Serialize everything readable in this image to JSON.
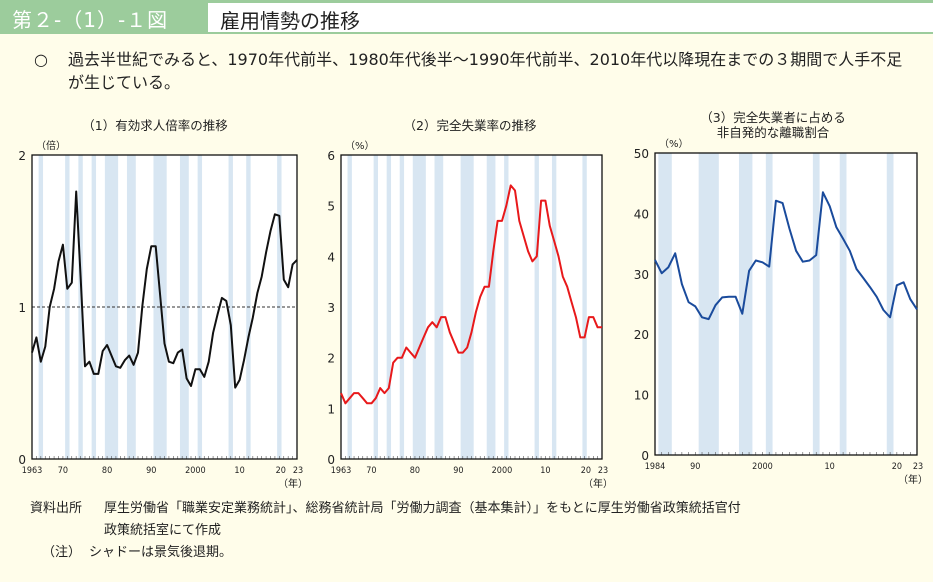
{
  "header": {
    "figure_number": "第２-（1）-１図",
    "title": "雇用情勢の推移"
  },
  "lead": {
    "bullet": "○",
    "text": "過去半世紀でみると、1970年代前半、1980年代後半～1990年代前半、2010年代以降現在までの３期間で人手不足が生じている。"
  },
  "source": {
    "label": "資料出所",
    "text_line1": "厚生労働省「職業安定業務統計」、総務省統計局「労働力調査（基本集計）」をもとに厚生労働省政策統括官付",
    "text_line2": "政策統括室にて作成",
    "note_label": "（注）",
    "note_text": "シャドーは景気後退期。"
  },
  "colors": {
    "header_bg": "#9ccc9c",
    "shade": "#d8e6f2",
    "series1": "#111111",
    "series2": "#e8191b",
    "series3": "#1a4b9c"
  },
  "chart_data": [
    {
      "type": "line",
      "title": "（1）有効求人倍率の推移",
      "ylabel": "（倍）",
      "xlabel": "（年）",
      "ylim": [
        0,
        2
      ],
      "yticks": [
        "0",
        "1",
        "2"
      ],
      "xlim": [
        1963,
        2023
      ],
      "xtick_labels": [
        {
          "x": 1963,
          "label": "1963"
        },
        {
          "x": 1970,
          "label": "70"
        },
        {
          "x": 1980,
          "label": "80"
        },
        {
          "x": 1990,
          "label": "90"
        },
        {
          "x": 2000,
          "label": "2000"
        },
        {
          "x": 2010,
          "label": "10"
        },
        {
          "x": 2020,
          "label": "20"
        },
        {
          "x": 2023,
          "label": "23"
        }
      ],
      "reference_line": 1,
      "shaded_periods": [
        [
          1964.5,
          1965.5
        ],
        [
          1970.5,
          1971.5
        ],
        [
          1973.5,
          1974.5
        ],
        [
          1976.5,
          1977.5
        ],
        [
          1979.5,
          1982.5
        ],
        [
          1984.5,
          1986.5
        ],
        [
          1990.5,
          1993.5
        ],
        [
          1996.5,
          1998.5
        ],
        [
          2000.5,
          2001.5
        ],
        [
          2007.5,
          2008.5
        ],
        [
          2011.5,
          2012.5
        ],
        [
          2018.5,
          2019.5
        ]
      ],
      "series": [
        {
          "name": "有効求人倍率",
          "x": [
            1963,
            1964,
            1965,
            1966,
            1967,
            1968,
            1969,
            1970,
            1971,
            1972,
            1973,
            1974,
            1975,
            1976,
            1977,
            1978,
            1979,
            1980,
            1981,
            1982,
            1983,
            1984,
            1985,
            1986,
            1987,
            1988,
            1989,
            1990,
            1991,
            1992,
            1993,
            1994,
            1995,
            1996,
            1997,
            1998,
            1999,
            2000,
            2001,
            2002,
            2003,
            2004,
            2005,
            2006,
            2007,
            2008,
            2009,
            2010,
            2011,
            2012,
            2013,
            2014,
            2015,
            2016,
            2017,
            2018,
            2019,
            2020,
            2021,
            2022,
            2023
          ],
          "values": [
            0.7,
            0.8,
            0.64,
            0.74,
            1.0,
            1.12,
            1.3,
            1.41,
            1.12,
            1.16,
            1.76,
            1.2,
            0.61,
            0.64,
            0.56,
            0.56,
            0.71,
            0.75,
            0.68,
            0.61,
            0.6,
            0.65,
            0.68,
            0.62,
            0.7,
            1.01,
            1.25,
            1.4,
            1.4,
            1.08,
            0.76,
            0.64,
            0.63,
            0.7,
            0.72,
            0.53,
            0.48,
            0.59,
            0.59,
            0.54,
            0.64,
            0.83,
            0.95,
            1.06,
            1.04,
            0.88,
            0.47,
            0.52,
            0.65,
            0.8,
            0.93,
            1.09,
            1.2,
            1.36,
            1.5,
            1.61,
            1.6,
            1.18,
            1.13,
            1.28,
            1.31
          ]
        }
      ]
    },
    {
      "type": "line",
      "title": "（2）完全失業率の推移",
      "ylabel": "（%）",
      "xlabel": "（年）",
      "ylim": [
        0,
        6
      ],
      "yticks": [
        "0",
        "1",
        "2",
        "3",
        "4",
        "5",
        "6"
      ],
      "xlim": [
        1963,
        2023
      ],
      "xtick_labels": [
        {
          "x": 1963,
          "label": "1963"
        },
        {
          "x": 1970,
          "label": "70"
        },
        {
          "x": 1980,
          "label": "80"
        },
        {
          "x": 1990,
          "label": "90"
        },
        {
          "x": 2000,
          "label": "2000"
        },
        {
          "x": 2010,
          "label": "10"
        },
        {
          "x": 2020,
          "label": "20"
        },
        {
          "x": 2023,
          "label": "23"
        }
      ],
      "shaded_periods": [
        [
          1964.5,
          1965.5
        ],
        [
          1970.5,
          1971.5
        ],
        [
          1973.5,
          1974.5
        ],
        [
          1976.5,
          1977.5
        ],
        [
          1979.5,
          1982.5
        ],
        [
          1984.5,
          1986.5
        ],
        [
          1990.5,
          1993.5
        ],
        [
          1996.5,
          1998.5
        ],
        [
          2000.5,
          2001.5
        ],
        [
          2007.5,
          2008.5
        ],
        [
          2011.5,
          2012.5
        ],
        [
          2018.5,
          2019.5
        ]
      ],
      "series": [
        {
          "name": "完全失業率",
          "x": [
            1963,
            1964,
            1965,
            1966,
            1967,
            1968,
            1969,
            1970,
            1971,
            1972,
            1973,
            1974,
            1975,
            1976,
            1977,
            1978,
            1979,
            1980,
            1981,
            1982,
            1983,
            1984,
            1985,
            1986,
            1987,
            1988,
            1989,
            1990,
            1991,
            1992,
            1993,
            1994,
            1995,
            1996,
            1997,
            1998,
            1999,
            2000,
            2001,
            2002,
            2003,
            2004,
            2005,
            2006,
            2007,
            2008,
            2009,
            2010,
            2011,
            2012,
            2013,
            2014,
            2015,
            2016,
            2017,
            2018,
            2019,
            2020,
            2021,
            2022,
            2023
          ],
          "values": [
            1.3,
            1.1,
            1.2,
            1.3,
            1.3,
            1.2,
            1.1,
            1.1,
            1.2,
            1.4,
            1.3,
            1.4,
            1.9,
            2.0,
            2.0,
            2.2,
            2.1,
            2.0,
            2.2,
            2.4,
            2.6,
            2.7,
            2.6,
            2.8,
            2.8,
            2.5,
            2.3,
            2.1,
            2.1,
            2.2,
            2.5,
            2.9,
            3.2,
            3.4,
            3.4,
            4.1,
            4.7,
            4.7,
            5.0,
            5.4,
            5.3,
            4.7,
            4.4,
            4.1,
            3.9,
            4.0,
            5.1,
            5.1,
            4.6,
            4.3,
            4.0,
            3.6,
            3.4,
            3.1,
            2.8,
            2.4,
            2.4,
            2.8,
            2.8,
            2.6,
            2.6
          ]
        }
      ]
    },
    {
      "type": "line",
      "title": "（3）完全失業者に占める",
      "title_line2": "非自発的な離職割合",
      "ylabel": "（%）",
      "xlabel": "（年）",
      "ylim": [
        0,
        50
      ],
      "yticks": [
        "0",
        "10",
        "20",
        "30",
        "40",
        "50"
      ],
      "xlim": [
        1984,
        2023
      ],
      "xtick_labels": [
        {
          "x": 1984,
          "label": "1984"
        },
        {
          "x": 1990,
          "label": "90"
        },
        {
          "x": 2000,
          "label": "2000"
        },
        {
          "x": 2010,
          "label": "10"
        },
        {
          "x": 2020,
          "label": "20"
        },
        {
          "x": 2023,
          "label": "23"
        }
      ],
      "shaded_periods": [
        [
          1984.5,
          1986.5
        ],
        [
          1990.5,
          1993.5
        ],
        [
          1996.5,
          1998.5
        ],
        [
          2000.5,
          2001.5
        ],
        [
          2007.5,
          2008.5
        ],
        [
          2011.5,
          2012.5
        ],
        [
          2018.5,
          2019.5
        ]
      ],
      "series": [
        {
          "name": "非自発的な離職割合",
          "x": [
            1984,
            1985,
            1986,
            1987,
            1988,
            1989,
            1990,
            1991,
            1992,
            1993,
            1994,
            1995,
            1996,
            1997,
            1998,
            1999,
            2000,
            2001,
            2002,
            2003,
            2004,
            2005,
            2006,
            2007,
            2008,
            2009,
            2010,
            2011,
            2012,
            2013,
            2014,
            2015,
            2016,
            2017,
            2018,
            2019,
            2020,
            2021,
            2022,
            2023
          ],
          "values": [
            32.3,
            30.1,
            31.1,
            33.4,
            28.3,
            25.3,
            24.6,
            22.8,
            22.5,
            24.8,
            26.1,
            26.2,
            26.2,
            23.4,
            30.5,
            32.2,
            31.9,
            31.2,
            42.1,
            41.7,
            37.5,
            33.8,
            32.0,
            32.2,
            33.1,
            43.5,
            41.2,
            37.7,
            35.8,
            33.8,
            30.8,
            29.3,
            27.8,
            26.2,
            24.0,
            22.8,
            28.1,
            28.6,
            25.8,
            24.1
          ]
        }
      ]
    }
  ]
}
